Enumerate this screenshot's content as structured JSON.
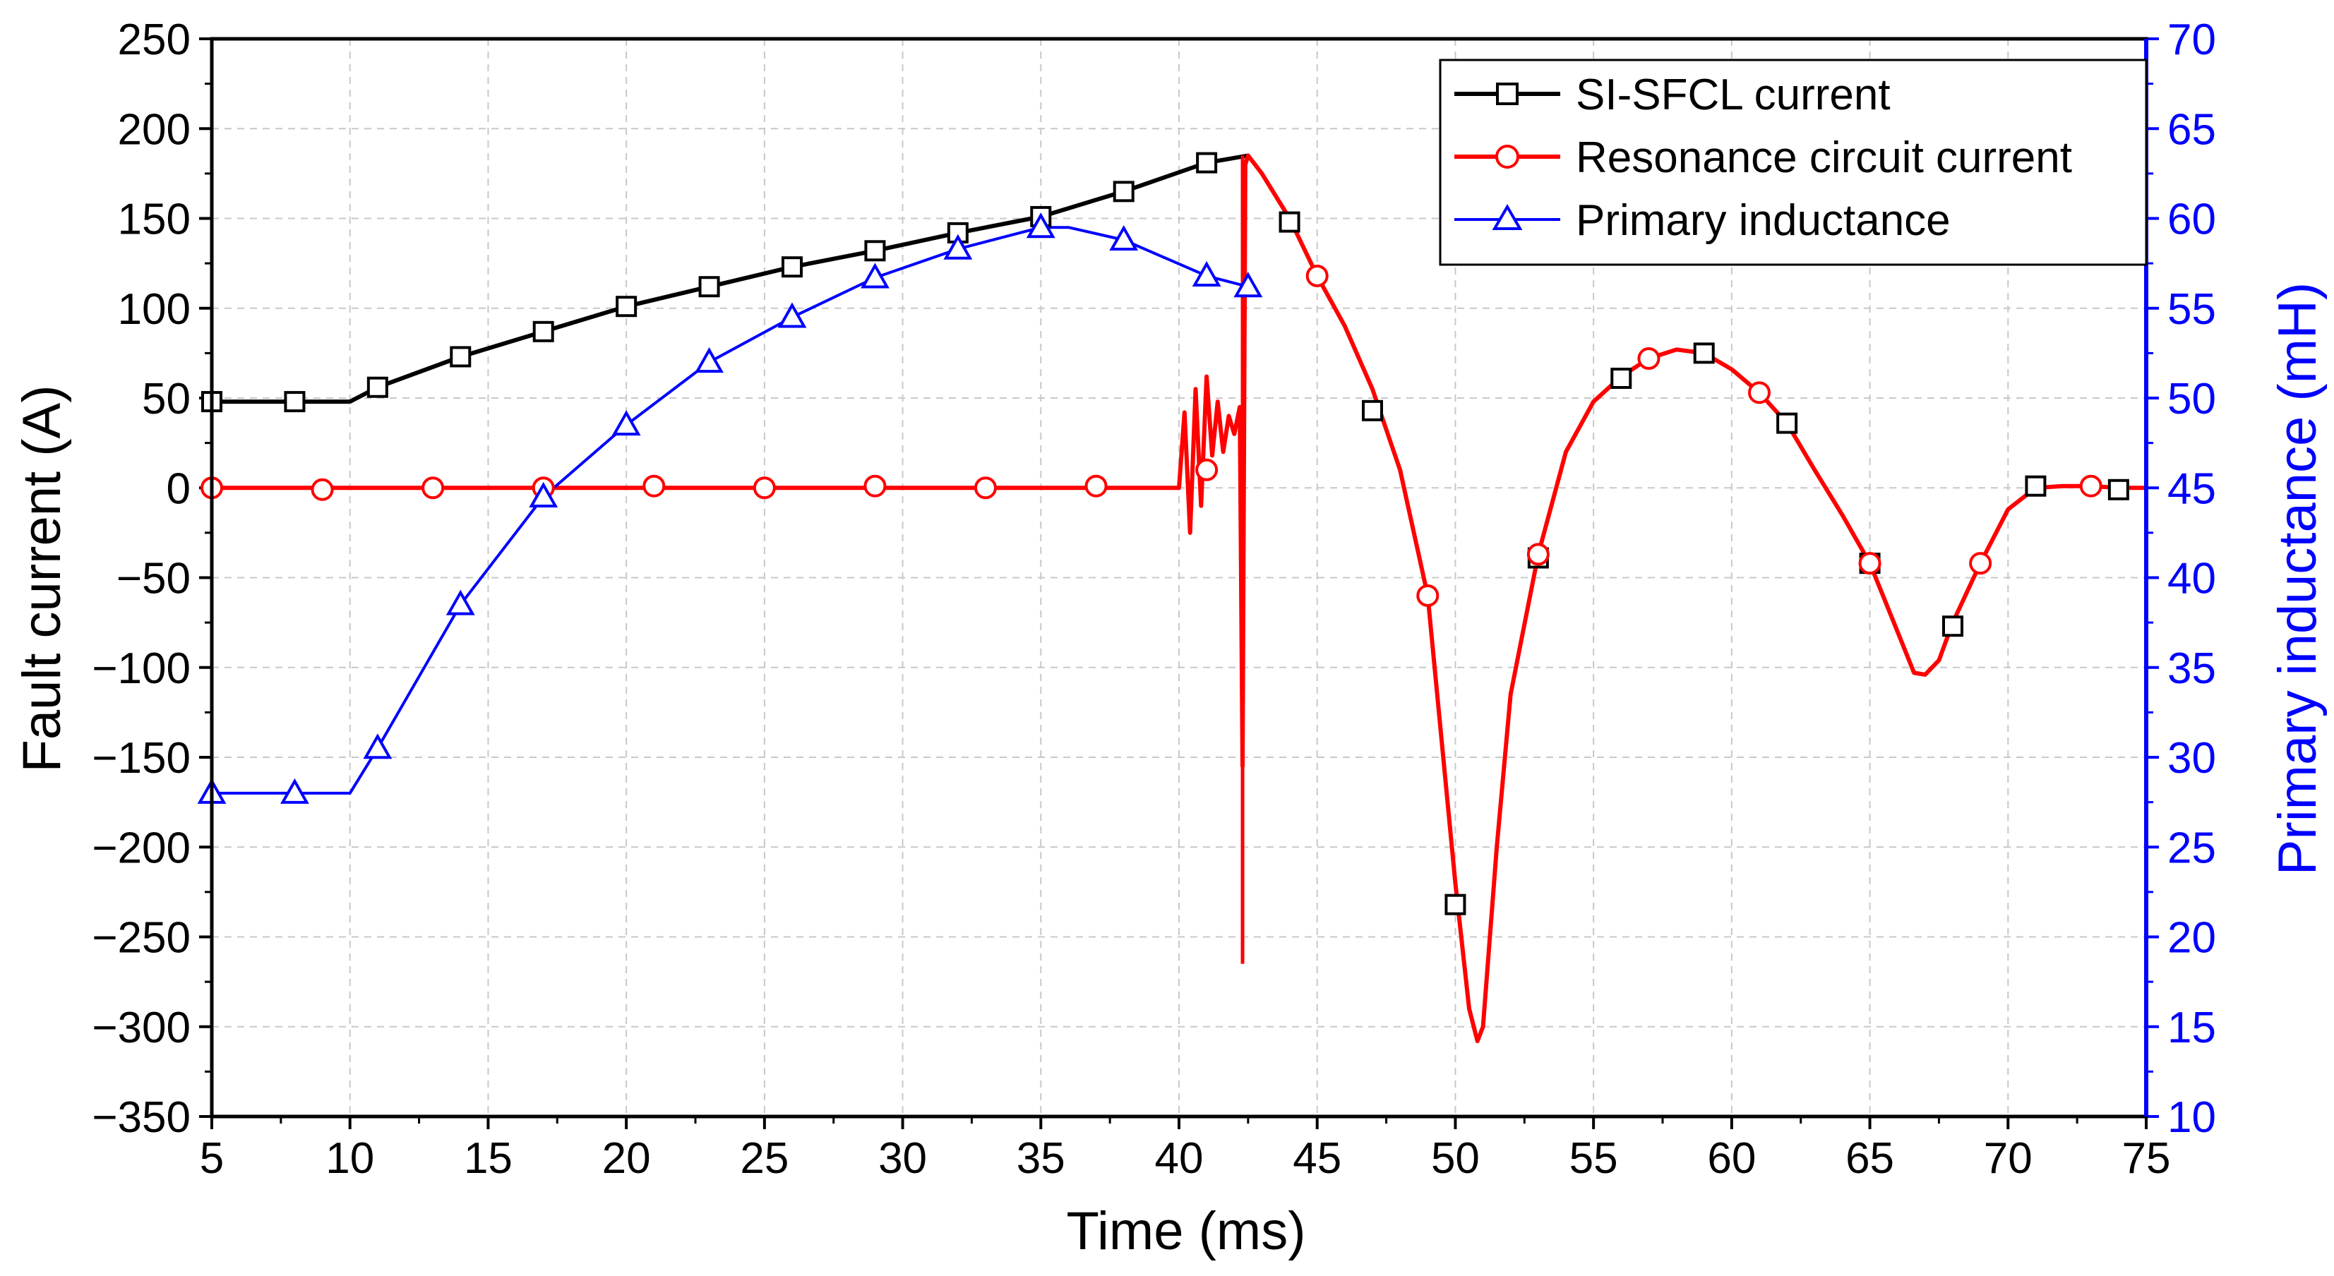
{
  "chart_data": {
    "type": "line",
    "title": "",
    "xlabel": "Time (ms)",
    "ylabel": "Fault current (A)",
    "y2label": "Primary inductance (mH)",
    "xlim": [
      5,
      75
    ],
    "ylim": [
      -350,
      250
    ],
    "y2lim": [
      10,
      70
    ],
    "xticks": [
      5,
      10,
      15,
      20,
      25,
      30,
      35,
      40,
      45,
      50,
      55,
      60,
      65,
      70,
      75
    ],
    "yticks": [
      250,
      200,
      150,
      100,
      50,
      0,
      -50,
      -100,
      -150,
      -200,
      -250,
      -300,
      -350
    ],
    "yticks_labels": [
      "250",
      "200",
      "150",
      "100",
      "50",
      "0",
      "−50",
      "−100",
      "−150",
      "−200",
      "−250",
      "−300",
      "−350"
    ],
    "y2ticks": [
      70,
      65,
      60,
      55,
      50,
      45,
      40,
      35,
      30,
      25,
      20,
      15,
      10
    ],
    "grid": true,
    "legend_position": "top-right",
    "colors": {
      "sfcl": "#000000",
      "resonance": "#ff0000",
      "inductance": "#0000ff",
      "grid": "#c8c8c8",
      "right_axis": "#0000ff"
    },
    "legend": [
      "SI-SFCL current",
      "Resonance circuit current",
      "Primary inductance"
    ],
    "series": [
      {
        "name": "SI-SFCL current",
        "axis": "left",
        "marker": "square",
        "x": [
          5,
          8,
          10,
          11,
          14,
          17,
          20,
          23,
          26,
          29,
          32,
          35,
          38,
          41,
          42.5
        ],
        "y": [
          48,
          48,
          48,
          56,
          73,
          87,
          101,
          112,
          123,
          132,
          142,
          151,
          165,
          181,
          185
        ],
        "marker_x": [
          5,
          8,
          11,
          14,
          17,
          20,
          23,
          26,
          29,
          32,
          35,
          38,
          41,
          44,
          47,
          50,
          53,
          56,
          59,
          62,
          65,
          68,
          71,
          74
        ],
        "marker_y": [
          48,
          48,
          56,
          73,
          87,
          101,
          112,
          123,
          132,
          142,
          151,
          165,
          181,
          148,
          43,
          -232,
          -39,
          61,
          75,
          36,
          -42,
          -77,
          1,
          -1
        ]
      },
      {
        "name": "Resonance circuit current",
        "axis": "left",
        "marker": "circle",
        "x": [
          5,
          40,
          40.2,
          40.4,
          40.6,
          40.8,
          41.0,
          41.2,
          41.4,
          41.6,
          41.8,
          42.0,
          42.2,
          42.3,
          42.4,
          42.5,
          43,
          44,
          45,
          46,
          47,
          48,
          49,
          50,
          50.5,
          50.8,
          51,
          51.5,
          52,
          53,
          54,
          55,
          56,
          57,
          58,
          59,
          60,
          61,
          62,
          63,
          64,
          65,
          66,
          66.6,
          67,
          67.5,
          68,
          69,
          70,
          71,
          72,
          73,
          74,
          75
        ],
        "y": [
          0,
          0,
          42,
          -25,
          55,
          -10,
          62,
          18,
          48,
          20,
          40,
          30,
          45,
          -155,
          180,
          185,
          175,
          150,
          118,
          90,
          55,
          10,
          -60,
          -220,
          -290,
          -308,
          -300,
          -200,
          -115,
          -37,
          20,
          48,
          62,
          72,
          77,
          75,
          66,
          53,
          36,
          10,
          -15,
          -42,
          -80,
          -103,
          -104,
          -96,
          -75,
          -42,
          -12,
          0,
          1,
          1,
          0,
          0
        ],
        "spike": {
          "x": 42.3,
          "y_min": -265,
          "y_max": 185
        },
        "marker_x": [
          5,
          9,
          13,
          17,
          21,
          25,
          29,
          33,
          37,
          41,
          45,
          49,
          53,
          57,
          61,
          65,
          69,
          73
        ],
        "marker_y": [
          0,
          -1,
          0,
          0,
          1,
          0,
          1,
          0,
          1,
          10,
          118,
          -60,
          -37,
          72,
          53,
          -42,
          -42,
          1
        ]
      },
      {
        "name": "Primary inductance",
        "axis": "right",
        "marker": "triangle",
        "x": [
          5,
          8,
          10,
          11,
          14,
          17,
          20,
          23,
          26,
          29,
          32,
          35,
          36,
          38,
          41,
          42.5
        ],
        "y": [
          28,
          28,
          28,
          30.5,
          38.5,
          44.5,
          48.5,
          52,
          54.5,
          56.7,
          58.3,
          59.5,
          59.5,
          58.8,
          56.8,
          56.2
        ],
        "marker_x": [
          5,
          8,
          11,
          14,
          17,
          20,
          23,
          26,
          29,
          32,
          35,
          38,
          41,
          42.5
        ],
        "marker_y": [
          28,
          28,
          30.5,
          38.5,
          44.5,
          48.5,
          52,
          54.5,
          56.7,
          58.3,
          59.5,
          58.8,
          56.8,
          56.2
        ]
      }
    ]
  }
}
